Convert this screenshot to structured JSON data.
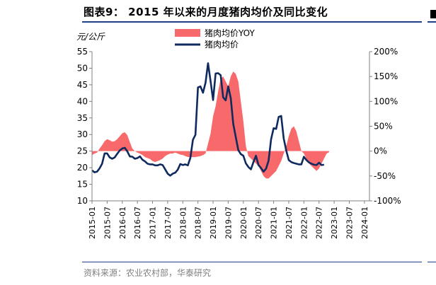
{
  "figure": {
    "title": "图表9： 2015 年以来的月度猪肉均价及同比变化",
    "source": "资料来源：农业农村部，华泰研究"
  },
  "chart_data": {
    "type": "line",
    "left_unit": "元/公斤",
    "left_axis": {
      "min": 10,
      "max": 55,
      "ticks": [
        "10",
        "15",
        "20",
        "25",
        "30",
        "35",
        "40",
        "45",
        "50",
        "55"
      ]
    },
    "right_axis": {
      "min": -100,
      "max": 200,
      "ticks": [
        "-100%",
        "-50%",
        "0%",
        "50%",
        "100%",
        "150%",
        "200%"
      ]
    },
    "x_ticks": [
      "2015-01",
      "2015-07",
      "2016-01",
      "2016-07",
      "2017-01",
      "2017-07",
      "2018-01",
      "2018-07",
      "2019-01",
      "2019-07",
      "2020-01",
      "2020-07",
      "2021-01",
      "2021-07",
      "2022-01",
      "2022-07",
      "2023-01",
      "2023-07",
      "2024-01"
    ],
    "legend": "top-center",
    "series": [
      {
        "name": "猪肉均价YOY",
        "type": "area",
        "axis": "right",
        "color": "#f8696b",
        "start": "2015-01",
        "values": [
          -8,
          -5,
          -3,
          5,
          12,
          20,
          24,
          22,
          19,
          20,
          24,
          30,
          36,
          38,
          32,
          18,
          5,
          0,
          -3,
          -5,
          -8,
          -12,
          -14,
          -16,
          -20,
          -22,
          -20,
          -18,
          -15,
          -10,
          -7,
          -5,
          -5,
          -3,
          -5,
          -7,
          -8,
          -10,
          -12,
          -12,
          -12,
          -12,
          -11,
          -10,
          -8,
          -5,
          15,
          35,
          70,
          90,
          120,
          145,
          150,
          140,
          130,
          150,
          160,
          155,
          140,
          100,
          60,
          10,
          -10,
          -15,
          -20,
          -25,
          -30,
          -40,
          -50,
          -55,
          -55,
          -50,
          -45,
          -40,
          -30,
          -20,
          -5,
          10,
          30,
          45,
          50,
          40,
          20,
          0,
          -5,
          -15,
          -25,
          -30,
          -35,
          -40,
          -35,
          -25,
          -15,
          -5,
          -2
        ]
      },
      {
        "name": "猪肉均价",
        "type": "line",
        "axis": "left",
        "color": "#0e2a5e",
        "start": "2015-01",
        "values": [
          19.2,
          18.6,
          18.8,
          19.8,
          21.2,
          24.3,
          24.3,
          23.1,
          22.7,
          23.1,
          24.2,
          25.2,
          25.8,
          26.0,
          24.9,
          23.4,
          23.3,
          22.7,
          22.9,
          23.4,
          22.4,
          21.9,
          21.2,
          21.0,
          21.0,
          20.7,
          20.7,
          21.0,
          20.8,
          19.5,
          18.2,
          17.6,
          18.2,
          18.5,
          19.4,
          21.1,
          20.8,
          21.0,
          20.7,
          23.0,
          28.4,
          29.9,
          44.2,
          44.5,
          42.6,
          45.6,
          51.5,
          46.1,
          40.4,
          48.4,
          48.5,
          47.9,
          41.2,
          40.3,
          44.5,
          41.0,
          33.2,
          29.2,
          25.3,
          24.1,
          23.6,
          21.3,
          20.2,
          19.5,
          21.7,
          23.6,
          20.8,
          19.9,
          18.8,
          19.7,
          22.1,
          28.6,
          31.9,
          31.7,
          35.3,
          35.6,
          28.8,
          25.2,
          22.3,
          21.7,
          21.4,
          21.2,
          21.0,
          21.0,
          23.3,
          22.3,
          21.6,
          21.2,
          20.9,
          20.8,
          21.5,
          20.8,
          20.9
        ]
      }
    ]
  }
}
